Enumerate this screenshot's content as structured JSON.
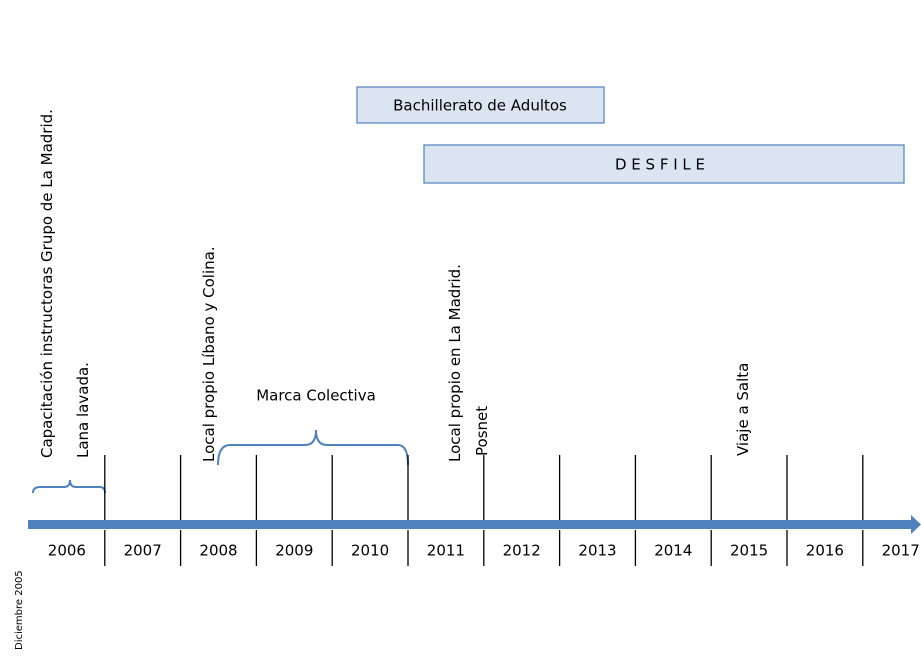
{
  "timeline": {
    "start_label": "Diciembre 2005",
    "years": [
      "2006",
      "2007",
      "2008",
      "2009",
      "2010",
      "2011",
      "2012",
      "2013",
      "2014",
      "2015",
      "2016",
      "2017"
    ],
    "events": [
      "Capacitación instructoras Grupo de La Madrid.",
      "Lana lavada.",
      "Local propio Líbano y Colina.",
      "Local propio en La Madrid.",
      "Posnet",
      "Viaje a Salta"
    ],
    "spans": [
      "Marca Colectiva"
    ],
    "boxes": [
      "Bachillerato de Adultos",
      "D E S F I L E"
    ]
  }
}
